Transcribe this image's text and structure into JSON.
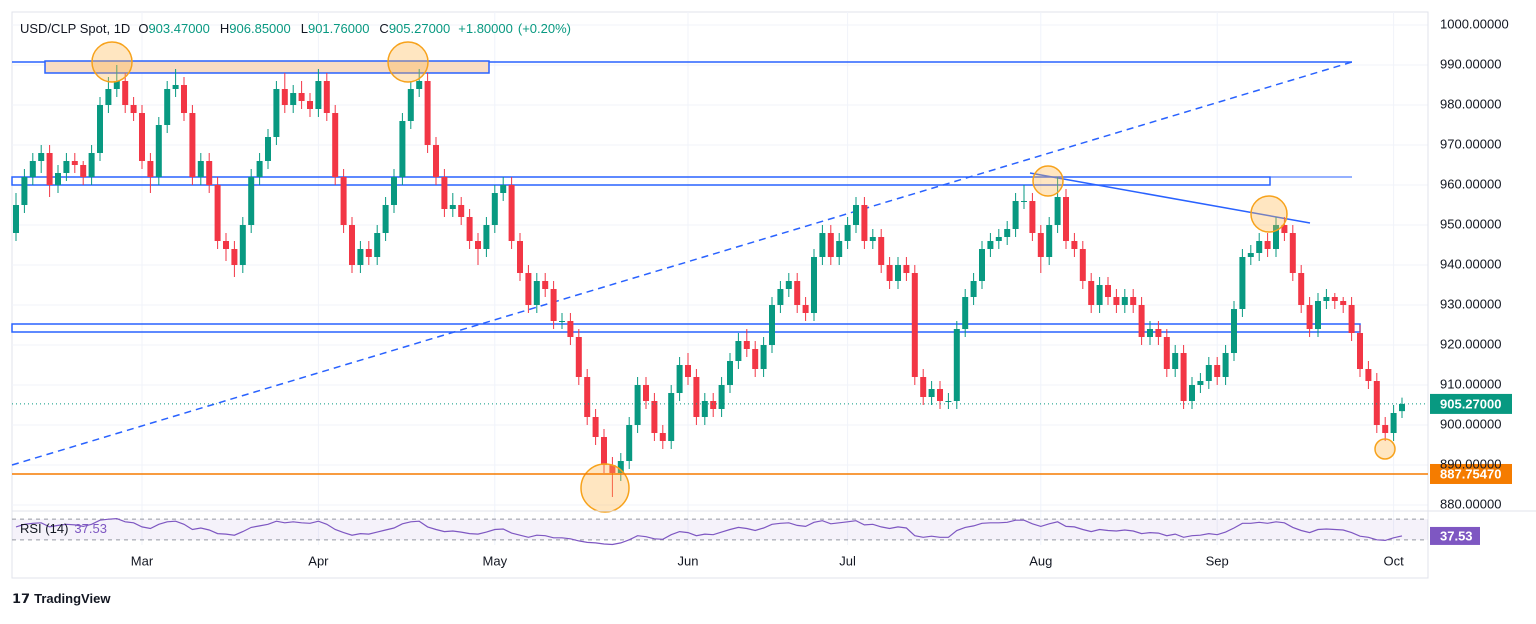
{
  "chart_data": {
    "type": "candlestick",
    "title": "USD/CLP Spot, 1D",
    "ohlc_legend": [
      {
        "key": "O",
        "value": "903.47000"
      },
      {
        "key": "H",
        "value": "906.85000"
      },
      {
        "key": "L",
        "value": "901.76000"
      },
      {
        "key": "C",
        "value": "905.27000"
      }
    ],
    "change": "+1.80000",
    "change_pct": "(+0.20%)",
    "up_color": "#089981",
    "down_color": "#f23645",
    "ylim": [
      878.75,
      1003.25
    ],
    "yticks": [
      {
        "value": 880,
        "label": "880.00000"
      },
      {
        "value": 890,
        "label": "890.00000"
      },
      {
        "value": 900,
        "label": "900.00000"
      },
      {
        "value": 910,
        "label": "910.00000"
      },
      {
        "value": 920,
        "label": "920.00000"
      },
      {
        "value": 930,
        "label": "930.00000"
      },
      {
        "value": 940,
        "label": "940.00000"
      },
      {
        "value": 950,
        "label": "950.00000"
      },
      {
        "value": 960,
        "label": "960.00000"
      },
      {
        "value": 970,
        "label": "970.00000"
      },
      {
        "value": 980,
        "label": "980.00000"
      },
      {
        "value": 990,
        "label": "990.00000"
      },
      {
        "value": 1000,
        "label": "1000.00000"
      }
    ],
    "grid": true,
    "last_price_label": "905.27000",
    "support": {
      "value": 887.7547,
      "label": "887.75470",
      "color": "#f57c00"
    },
    "categories": [
      null,
      null,
      null,
      null,
      null,
      null,
      null,
      null,
      null,
      null,
      null,
      null,
      null,
      null,
      null,
      "Mar",
      null,
      null,
      null,
      null,
      null,
      null,
      null,
      null,
      null,
      null,
      null,
      null,
      null,
      null,
      null,
      null,
      null,
      null,
      null,
      null,
      "Apr",
      null,
      null,
      null,
      null,
      null,
      null,
      null,
      null,
      null,
      null,
      null,
      null,
      null,
      null,
      null,
      null,
      null,
      null,
      null,
      null,
      "May",
      null,
      null,
      null,
      null,
      null,
      null,
      null,
      null,
      null,
      null,
      null,
      null,
      null,
      null,
      null,
      null,
      null,
      null,
      null,
      null,
      null,
      null,
      "Jun",
      null,
      null,
      null,
      null,
      null,
      null,
      null,
      null,
      null,
      null,
      null,
      null,
      null,
      null,
      null,
      null,
      null,
      null,
      "Jul",
      null,
      null,
      null,
      null,
      null,
      null,
      null,
      null,
      null,
      null,
      null,
      null,
      null,
      null,
      null,
      null,
      null,
      null,
      null,
      null,
      null,
      null,
      "Aug",
      null,
      null,
      null,
      null,
      null,
      null,
      null,
      null,
      null,
      null,
      null,
      null,
      null,
      null,
      null,
      null,
      null,
      null,
      null,
      null,
      "Sep",
      null,
      null,
      null,
      null,
      null,
      null,
      null,
      null,
      null,
      null,
      null,
      null,
      null,
      null,
      null,
      null,
      null,
      null,
      null,
      null,
      "Oct",
      null
    ],
    "candles": [
      [
        948,
        958,
        946,
        955
      ],
      [
        955,
        964,
        953,
        962
      ],
      [
        962,
        968,
        960,
        966
      ],
      [
        966,
        970,
        963,
        968
      ],
      [
        968,
        970,
        957,
        960
      ],
      [
        960,
        965,
        958,
        963
      ],
      [
        963,
        968,
        961,
        966
      ],
      [
        966,
        968,
        963,
        965
      ],
      [
        965,
        966,
        960,
        962
      ],
      [
        962,
        970,
        960,
        968
      ],
      [
        968,
        982,
        966,
        980
      ],
      [
        980,
        987,
        978,
        984
      ],
      [
        984,
        990,
        982,
        986
      ],
      [
        986,
        988,
        978,
        980
      ],
      [
        980,
        982,
        976,
        978
      ],
      [
        978,
        980,
        964,
        966
      ],
      [
        966,
        968,
        958,
        962
      ],
      [
        962,
        977,
        960,
        975
      ],
      [
        975,
        986,
        973,
        984
      ],
      [
        984,
        989,
        982,
        985
      ],
      [
        985,
        987,
        976,
        978
      ],
      [
        978,
        980,
        960,
        962
      ],
      [
        962,
        968,
        960,
        966
      ],
      [
        966,
        968,
        958,
        960
      ],
      [
        960,
        962,
        944,
        946
      ],
      [
        946,
        948,
        941,
        944
      ],
      [
        944,
        946,
        937,
        940
      ],
      [
        940,
        952,
        938,
        950
      ],
      [
        950,
        964,
        948,
        962
      ],
      [
        962,
        968,
        960,
        966
      ],
      [
        966,
        974,
        964,
        972
      ],
      [
        972,
        986,
        970,
        984
      ],
      [
        984,
        988,
        978,
        980
      ],
      [
        980,
        985,
        978,
        983
      ],
      [
        983,
        986,
        979,
        981
      ],
      [
        981,
        983,
        977,
        979
      ],
      [
        979,
        989,
        977,
        986
      ],
      [
        986,
        988,
        976,
        978
      ],
      [
        978,
        980,
        960,
        962
      ],
      [
        962,
        964,
        948,
        950
      ],
      [
        950,
        952,
        938,
        940
      ],
      [
        940,
        946,
        938,
        944
      ],
      [
        944,
        946,
        940,
        942
      ],
      [
        942,
        950,
        940,
        948
      ],
      [
        948,
        957,
        946,
        955
      ],
      [
        955,
        964,
        953,
        962
      ],
      [
        962,
        978,
        960,
        976
      ],
      [
        976,
        986,
        974,
        984
      ],
      [
        984,
        989,
        982,
        986
      ],
      [
        986,
        988,
        968,
        970
      ],
      [
        970,
        972,
        960,
        962
      ],
      [
        962,
        964,
        952,
        954
      ],
      [
        954,
        958,
        952,
        955
      ],
      [
        955,
        957,
        950,
        952
      ],
      [
        952,
        954,
        944,
        946
      ],
      [
        946,
        948,
        940,
        944
      ],
      [
        944,
        952,
        942,
        950
      ],
      [
        950,
        960,
        948,
        958
      ],
      [
        958,
        962,
        956,
        960
      ],
      [
        960,
        962,
        944,
        946
      ],
      [
        946,
        948,
        936,
        938
      ],
      [
        938,
        940,
        928,
        930
      ],
      [
        930,
        938,
        928,
        936
      ],
      [
        936,
        938,
        932,
        934
      ],
      [
        934,
        936,
        924,
        926
      ],
      [
        926,
        928,
        924,
        926
      ],
      [
        926,
        928,
        920,
        922
      ],
      [
        922,
        924,
        910,
        912
      ],
      [
        912,
        914,
        900,
        902
      ],
      [
        902,
        904,
        895,
        897
      ],
      [
        897,
        899,
        888,
        890
      ],
      [
        890,
        892,
        882,
        888
      ],
      [
        888,
        893,
        886,
        891
      ],
      [
        891,
        902,
        889,
        900
      ],
      [
        900,
        912,
        898,
        910
      ],
      [
        910,
        912,
        904,
        906
      ],
      [
        906,
        908,
        896,
        898
      ],
      [
        898,
        900,
        894,
        896
      ],
      [
        896,
        910,
        894,
        908
      ],
      [
        908,
        917,
        906,
        915
      ],
      [
        915,
        918,
        910,
        912
      ],
      [
        912,
        914,
        900,
        902
      ],
      [
        902,
        908,
        900,
        906
      ],
      [
        906,
        908,
        902,
        904
      ],
      [
        904,
        912,
        902,
        910
      ],
      [
        910,
        918,
        908,
        916
      ],
      [
        916,
        923,
        914,
        921
      ],
      [
        921,
        924,
        917,
        919
      ],
      [
        919,
        921,
        912,
        914
      ],
      [
        914,
        922,
        912,
        920
      ],
      [
        920,
        932,
        918,
        930
      ],
      [
        930,
        936,
        928,
        934
      ],
      [
        934,
        938,
        932,
        936
      ],
      [
        936,
        938,
        928,
        930
      ],
      [
        930,
        932,
        926,
        928
      ],
      [
        928,
        944,
        926,
        942
      ],
      [
        942,
        950,
        940,
        948
      ],
      [
        948,
        950,
        940,
        942
      ],
      [
        942,
        948,
        940,
        946
      ],
      [
        946,
        952,
        944,
        950
      ],
      [
        950,
        957,
        948,
        955
      ],
      [
        955,
        957,
        944,
        946
      ],
      [
        946,
        949,
        944,
        947
      ],
      [
        947,
        949,
        938,
        940
      ],
      [
        940,
        942,
        934,
        936
      ],
      [
        936,
        942,
        934,
        940
      ],
      [
        940,
        942,
        936,
        938
      ],
      [
        938,
        940,
        910,
        912
      ],
      [
        912,
        914,
        905,
        907
      ],
      [
        907,
        911,
        905,
        909
      ],
      [
        909,
        911,
        904,
        906
      ],
      [
        906,
        908,
        904,
        906
      ],
      [
        906,
        926,
        904,
        924
      ],
      [
        924,
        934,
        922,
        932
      ],
      [
        932,
        938,
        930,
        936
      ],
      [
        936,
        946,
        934,
        944
      ],
      [
        944,
        948,
        942,
        946
      ],
      [
        946,
        949,
        944,
        947
      ],
      [
        947,
        951,
        945,
        949
      ],
      [
        949,
        958,
        947,
        956
      ],
      [
        956,
        960,
        954,
        956
      ],
      [
        956,
        958,
        946,
        948
      ],
      [
        948,
        950,
        938,
        942
      ],
      [
        942,
        952,
        940,
        950
      ],
      [
        950,
        962,
        948,
        957
      ],
      [
        957,
        959,
        944,
        946
      ],
      [
        946,
        948,
        942,
        944
      ],
      [
        944,
        946,
        934,
        936
      ],
      [
        936,
        938,
        928,
        930
      ],
      [
        930,
        937,
        928,
        935
      ],
      [
        935,
        937,
        930,
        932
      ],
      [
        932,
        934,
        928,
        930
      ],
      [
        930,
        934,
        928,
        932
      ],
      [
        932,
        934,
        928,
        930
      ],
      [
        930,
        932,
        920,
        922
      ],
      [
        922,
        926,
        920,
        924
      ],
      [
        924,
        926,
        920,
        922
      ],
      [
        922,
        924,
        912,
        914
      ],
      [
        914,
        920,
        912,
        918
      ],
      [
        918,
        920,
        904,
        906
      ],
      [
        906,
        912,
        904,
        910
      ],
      [
        910,
        913,
        908,
        911
      ],
      [
        911,
        917,
        909,
        915
      ],
      [
        915,
        917,
        910,
        912
      ],
      [
        912,
        920,
        910,
        918
      ],
      [
        918,
        931,
        916,
        929
      ],
      [
        929,
        944,
        927,
        942
      ],
      [
        942,
        945,
        940,
        943
      ],
      [
        943,
        948,
        941,
        946
      ],
      [
        946,
        948,
        942,
        944
      ],
      [
        944,
        952,
        942,
        950
      ],
      [
        950,
        952,
        946,
        948
      ],
      [
        948,
        950,
        936,
        938
      ],
      [
        938,
        940,
        928,
        930
      ],
      [
        930,
        932,
        922,
        924
      ],
      [
        924,
        933,
        922,
        931
      ],
      [
        931,
        934,
        929,
        932
      ],
      [
        932,
        933,
        929,
        931
      ],
      [
        931,
        932,
        928,
        930
      ],
      [
        930,
        932,
        921,
        923
      ],
      [
        923,
        925,
        912,
        914
      ],
      [
        914,
        916,
        909,
        911
      ],
      [
        911,
        913,
        898,
        900
      ],
      [
        900,
        902,
        896,
        898
      ],
      [
        898,
        905,
        896,
        903
      ],
      [
        903.47,
        906.85,
        901.76,
        905.27
      ]
    ],
    "rsi": {
      "title": "RSI (14)",
      "value_label": "37.53",
      "color": "#7e57c2",
      "ylim": [
        20,
        80
      ],
      "bands": [
        30,
        70
      ],
      "values": [
        55,
        60,
        62,
        63,
        55,
        58,
        60,
        59,
        56,
        60,
        68,
        70,
        71,
        65,
        63,
        55,
        52,
        60,
        65,
        66,
        60,
        50,
        53,
        49,
        42,
        41,
        39,
        46,
        54,
        57,
        60,
        66,
        63,
        65,
        63,
        62,
        66,
        60,
        50,
        44,
        39,
        42,
        41,
        45,
        49,
        53,
        61,
        65,
        66,
        55,
        50,
        46,
        47,
        45,
        42,
        41,
        45,
        50,
        51,
        43,
        39,
        35,
        39,
        38,
        34,
        34,
        32,
        28,
        25,
        24,
        22,
        21,
        24,
        30,
        38,
        36,
        32,
        31,
        40,
        46,
        44,
        38,
        41,
        40,
        45,
        50,
        54,
        52,
        48,
        53,
        60,
        62,
        63,
        58,
        56,
        64,
        67,
        61,
        63,
        65,
        67,
        59,
        60,
        55,
        52,
        55,
        53,
        38,
        35,
        37,
        35,
        35,
        48,
        54,
        57,
        62,
        63,
        63,
        64,
        68,
        68,
        61,
        56,
        61,
        65,
        56,
        55,
        50,
        46,
        50,
        48,
        47,
        49,
        47,
        42,
        44,
        43,
        38,
        41,
        35,
        38,
        39,
        42,
        40,
        45,
        53,
        62,
        62,
        64,
        62,
        65,
        63,
        54,
        48,
        44,
        50,
        51,
        50,
        49,
        44,
        37,
        35,
        30,
        29,
        34,
        37.53
      ]
    }
  },
  "footer": {
    "brand": "TradingView"
  }
}
